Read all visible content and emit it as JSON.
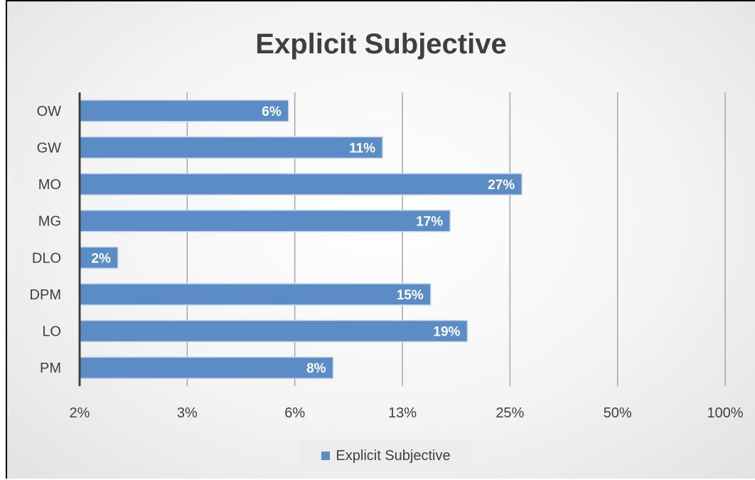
{
  "chart_data": {
    "type": "bar",
    "orientation": "horizontal",
    "title": "Explicit Subjective",
    "categories": [
      "OW",
      "GW",
      "MO",
      "MG",
      "DLO",
      "DPM",
      "LO",
      "PM"
    ],
    "series": [
      {
        "name": "Explicit Subjective",
        "values": [
          6,
          11,
          27,
          17,
          2,
          15,
          19,
          8
        ],
        "labels": [
          "6%",
          "11%",
          "27%",
          "17%",
          "2%",
          "15%",
          "19%",
          "8%"
        ]
      }
    ],
    "x_scale": "log2",
    "x_ticks": [
      1.5625,
      3.125,
      6.25,
      12.5,
      25,
      50,
      100
    ],
    "x_tick_labels": [
      "2%",
      "3%",
      "6%",
      "13%",
      "25%",
      "50%",
      "100%"
    ],
    "xlim": [
      1.5625,
      100
    ],
    "grid": true,
    "legend_position": "bottom",
    "bar_color": "#5b8cc6"
  }
}
